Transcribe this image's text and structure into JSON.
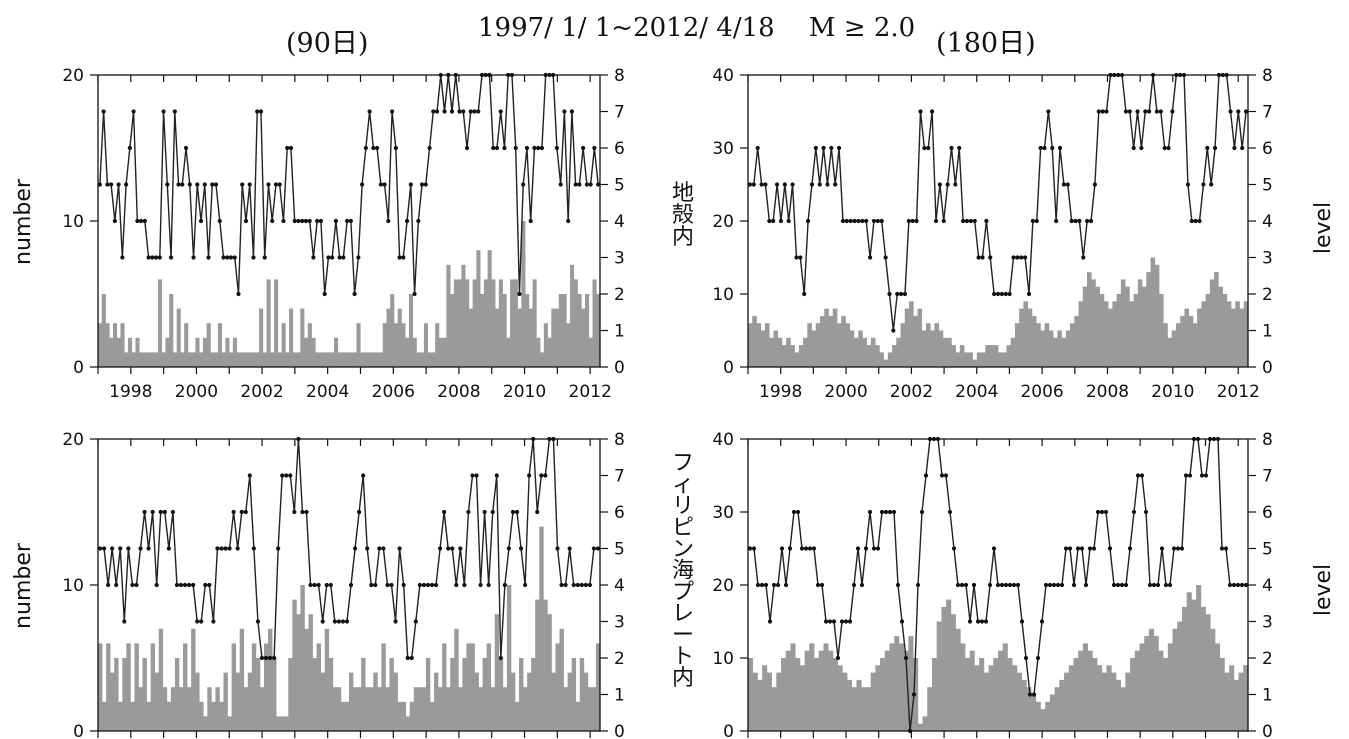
{
  "figure": {
    "title": "1997/ 1/ 1~2012/ 4/18　 M ≥ 2.0",
    "left_window": "(90日)",
    "right_window": "(180日)",
    "region_crust": "地殻内",
    "region_plate": "フィリピン海プレート内",
    "left_axis_label": "number",
    "right_axis_label": "level"
  },
  "chart_data": [
    {
      "id": "crust-90",
      "type": "bar",
      "x_range": [
        1997.0,
        2012.3
      ],
      "x_ticks": [
        "1998",
        "2000",
        "2002",
        "2004",
        "2006",
        "2008",
        "2010",
        "2012"
      ],
      "ylim": [
        0,
        20
      ],
      "yticks": [
        0,
        10,
        20
      ],
      "ylim_right": [
        0,
        8
      ],
      "yticks_right": [
        0,
        1,
        2,
        3,
        4,
        5,
        6,
        7,
        8
      ],
      "ylabel": "number",
      "ylabel_right": "level",
      "counts": [
        3,
        5,
        3,
        2,
        3,
        2,
        3,
        1,
        2,
        1,
        2,
        1,
        1,
        1,
        1,
        1,
        6,
        1,
        2,
        5,
        1,
        4,
        1,
        3,
        1,
        1,
        2,
        1,
        2,
        3,
        1,
        1,
        3,
        1,
        2,
        1,
        2,
        1,
        1,
        1,
        1,
        1,
        1,
        4,
        1,
        6,
        1,
        6,
        1,
        3,
        1,
        4,
        1,
        1,
        4,
        2,
        3,
        2,
        1,
        1,
        1,
        1,
        1,
        2,
        1,
        1,
        1,
        1,
        1,
        3,
        1,
        1,
        1,
        1,
        1,
        1,
        3,
        4,
        5,
        3,
        4,
        3,
        2,
        5,
        2,
        1,
        1,
        3,
        1,
        1,
        3,
        2,
        2,
        7,
        5,
        6,
        6,
        7,
        6,
        4,
        6,
        8,
        5,
        6,
        8,
        6,
        4,
        6,
        5,
        2,
        6,
        6,
        4,
        10,
        5,
        4,
        6,
        2,
        1,
        3,
        2,
        4,
        4,
        5,
        5,
        3,
        7,
        6,
        5,
        4,
        5,
        2,
        6,
        5
      ],
      "levels": [
        5,
        7,
        5,
        5,
        4,
        5,
        3,
        5,
        6,
        7,
        4,
        4,
        4,
        3,
        3,
        3,
        3,
        7,
        5,
        3,
        7,
        5,
        5,
        6,
        5,
        3,
        5,
        4,
        5,
        3,
        5,
        5,
        4,
        3,
        3,
        3,
        3,
        2,
        5,
        4,
        5,
        3,
        7,
        7,
        3,
        5,
        4,
        5,
        5,
        4,
        6,
        6,
        4,
        4,
        4,
        4,
        4,
        3,
        4,
        4,
        2,
        3,
        3,
        4,
        3,
        3,
        4,
        4,
        2,
        3,
        5,
        6,
        7,
        6,
        6,
        5,
        5,
        4,
        7,
        6,
        3,
        3,
        4,
        5,
        2,
        4,
        5,
        5,
        6,
        7,
        7,
        8,
        7,
        8,
        7,
        8,
        7,
        7,
        6,
        7,
        7,
        7,
        8,
        8,
        8,
        6,
        6,
        7,
        6,
        8,
        8,
        6,
        2,
        5,
        6,
        4,
        6,
        6,
        6,
        8,
        8,
        8,
        6,
        5,
        7,
        4,
        7,
        5,
        5,
        6,
        5,
        5,
        6,
        5
      ]
    },
    {
      "id": "crust-180",
      "type": "bar",
      "x_range": [
        1997.0,
        2012.3
      ],
      "x_ticks": [
        "1998",
        "2000",
        "2002",
        "2004",
        "2006",
        "2008",
        "2010",
        "2012"
      ],
      "ylim": [
        0,
        40
      ],
      "yticks": [
        0,
        10,
        20,
        30,
        40
      ],
      "ylim_right": [
        0,
        8
      ],
      "yticks_right": [
        0,
        1,
        2,
        3,
        4,
        5,
        6,
        7,
        8
      ],
      "ylabel": "",
      "ylabel_right": "level",
      "counts": [
        6,
        7,
        6,
        5,
        6,
        4,
        5,
        4,
        3,
        4,
        3,
        2,
        3,
        4,
        6,
        5,
        6,
        7,
        8,
        7,
        8,
        6,
        7,
        6,
        5,
        4,
        5,
        4,
        3,
        4,
        3,
        2,
        1,
        2,
        3,
        4,
        6,
        8,
        9,
        7,
        8,
        5,
        6,
        5,
        6,
        5,
        4,
        4,
        3,
        2,
        3,
        2,
        2,
        1,
        2,
        2,
        3,
        3,
        3,
        2,
        2,
        3,
        4,
        6,
        8,
        9,
        8,
        7,
        6,
        5,
        6,
        5,
        4,
        5,
        4,
        5,
        6,
        7,
        9,
        11,
        13,
        12,
        11,
        10,
        9,
        8,
        9,
        10,
        12,
        11,
        9,
        10,
        12,
        11,
        13,
        15,
        14,
        10,
        6,
        4,
        5,
        6,
        7,
        8,
        7,
        6,
        8,
        9,
        10,
        12,
        13,
        11,
        10,
        9,
        8,
        9,
        8,
        9
      ],
      "levels": [
        5,
        5,
        6,
        5,
        5,
        4,
        4,
        5,
        4,
        5,
        4,
        5,
        3,
        3,
        2,
        4,
        5,
        6,
        5,
        6,
        5,
        6,
        5,
        6,
        4,
        4,
        4,
        4,
        4,
        4,
        4,
        3,
        4,
        4,
        4,
        3,
        2,
        1,
        2,
        2,
        2,
        4,
        4,
        4,
        7,
        6,
        6,
        7,
        4,
        5,
        4,
        5,
        6,
        5,
        6,
        4,
        4,
        4,
        4,
        3,
        3,
        4,
        3,
        2,
        2,
        2,
        2,
        2,
        3,
        3,
        3,
        3,
        2,
        4,
        4,
        6,
        6,
        7,
        6,
        4,
        6,
        5,
        5,
        4,
        4,
        4,
        3,
        4,
        4,
        5,
        7,
        7,
        7,
        8,
        8,
        8,
        8,
        7,
        7,
        6,
        7,
        6,
        7,
        7,
        8,
        7,
        7,
        6,
        6,
        7,
        8,
        8,
        8,
        5,
        4,
        4,
        4,
        5,
        6,
        5,
        6,
        8,
        8,
        8,
        7,
        6,
        7,
        6,
        7
      ]
    },
    {
      "id": "plate-90",
      "type": "bar",
      "x_range": [
        1997.0,
        2012.3
      ],
      "x_ticks": [],
      "ylim": [
        0,
        20
      ],
      "yticks": [
        0,
        10,
        20
      ],
      "ylim_right": [
        0,
        8
      ],
      "yticks_right": [
        0,
        1,
        2,
        3,
        4,
        5,
        6,
        7,
        8
      ],
      "ylabel": "number",
      "ylabel_right": "",
      "counts": [
        6,
        2,
        6,
        4,
        5,
        2,
        5,
        6,
        2,
        6,
        3,
        5,
        2,
        6,
        4,
        7,
        3,
        2,
        3,
        5,
        3,
        6,
        3,
        7,
        4,
        2,
        1,
        3,
        2,
        3,
        2,
        4,
        1,
        6,
        4,
        7,
        3,
        4,
        6,
        5,
        3,
        6,
        7,
        5,
        1,
        1,
        1,
        5,
        9,
        8,
        10,
        7,
        8,
        5,
        6,
        4,
        7,
        5,
        3,
        3,
        2,
        2,
        4,
        3,
        3,
        5,
        3,
        3,
        4,
        3,
        6,
        3,
        5,
        4,
        2,
        2,
        1,
        2,
        3,
        3,
        3,
        5,
        2,
        4,
        3,
        6,
        3,
        5,
        7,
        3,
        5,
        6,
        6,
        4,
        3,
        5,
        6,
        3,
        8,
        5,
        3,
        10,
        4,
        2,
        5,
        3,
        4,
        5,
        9,
        14,
        9,
        8,
        4,
        6,
        7,
        3,
        4,
        5,
        2,
        5,
        4,
        3,
        3,
        6
      ],
      "levels": [
        5,
        5,
        4,
        5,
        4,
        5,
        3,
        5,
        4,
        4,
        5,
        6,
        5,
        6,
        4,
        6,
        6,
        5,
        6,
        4,
        4,
        4,
        4,
        4,
        3,
        3,
        4,
        4,
        3,
        5,
        5,
        5,
        5,
        6,
        5,
        6,
        6,
        7,
        5,
        3,
        2,
        2,
        2,
        2,
        5,
        7,
        7,
        7,
        6,
        8,
        6,
        6,
        4,
        4,
        4,
        3,
        4,
        4,
        3,
        3,
        3,
        3,
        4,
        5,
        6,
        7,
        5,
        4,
        4,
        5,
        5,
        4,
        4,
        3,
        5,
        4,
        2,
        2,
        3,
        4,
        4,
        4,
        4,
        4,
        5,
        6,
        5,
        5,
        4,
        5,
        4,
        6,
        7,
        7,
        4,
        6,
        4,
        6,
        7,
        2,
        4,
        5,
        6,
        6,
        5,
        4,
        7,
        8,
        6,
        7,
        7,
        8,
        8,
        5,
        4,
        4,
        5,
        4,
        4,
        4,
        4,
        4,
        5,
        5
      ]
    },
    {
      "id": "plate-180",
      "type": "bar",
      "x_range": [
        1997.0,
        2012.3
      ],
      "x_ticks": [],
      "ylim": [
        0,
        40
      ],
      "yticks": [
        0,
        10,
        20,
        30,
        40
      ],
      "ylim_right": [
        0,
        8
      ],
      "yticks_right": [
        0,
        1,
        2,
        3,
        4,
        5,
        6,
        7,
        8
      ],
      "ylabel": "",
      "ylabel_right": "level",
      "counts": [
        10,
        8,
        7,
        9,
        8,
        6,
        8,
        10,
        11,
        12,
        10,
        9,
        11,
        12,
        10,
        11,
        12,
        11,
        10,
        9,
        8,
        7,
        6,
        7,
        6,
        6,
        8,
        9,
        10,
        11,
        12,
        13,
        12,
        11,
        13,
        10,
        1,
        2,
        6,
        10,
        15,
        17,
        18,
        16,
        14,
        12,
        10,
        11,
        9,
        10,
        8,
        9,
        10,
        11,
        12,
        10,
        9,
        8,
        7,
        6,
        5,
        4,
        3,
        4,
        5,
        6,
        7,
        8,
        9,
        10,
        11,
        12,
        11,
        10,
        9,
        8,
        9,
        8,
        7,
        6,
        8,
        10,
        11,
        12,
        13,
        14,
        13,
        11,
        10,
        12,
        14,
        15,
        17,
        19,
        18,
        20,
        17,
        16,
        14,
        12,
        10,
        8,
        9,
        7,
        8,
        9
      ],
      "levels": [
        5,
        5,
        4,
        4,
        4,
        3,
        4,
        4,
        5,
        4,
        5,
        6,
        6,
        5,
        5,
        5,
        5,
        4,
        4,
        3,
        3,
        3,
        2,
        3,
        3,
        3,
        4,
        5,
        4,
        5,
        6,
        5,
        5,
        6,
        6,
        6,
        6,
        4,
        3,
        2,
        0,
        1,
        4,
        6,
        7,
        8,
        8,
        8,
        7,
        7,
        6,
        5,
        4,
        4,
        4,
        3,
        4,
        3,
        3,
        3,
        4,
        5,
        4,
        4,
        4,
        4,
        4,
        4,
        3,
        2,
        1,
        1,
        2,
        3,
        4,
        4,
        4,
        4,
        4,
        5,
        5,
        4,
        5,
        5,
        4,
        5,
        5,
        6,
        6,
        6,
        5,
        4,
        4,
        4,
        4,
        5,
        6,
        7,
        7,
        6,
        4,
        4,
        4,
        5,
        4,
        4,
        5,
        5,
        5,
        7,
        7,
        8,
        8,
        7,
        7,
        8,
        8,
        8,
        5,
        5,
        4,
        4,
        4,
        4,
        4
      ]
    }
  ]
}
